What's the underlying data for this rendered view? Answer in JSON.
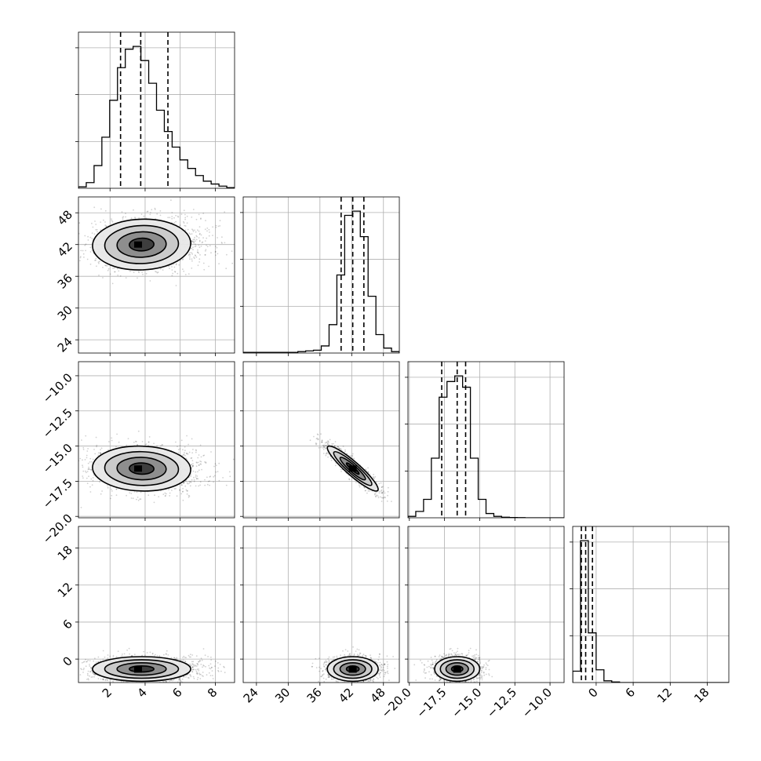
{
  "chart_data": {
    "type": "corner",
    "grid": true,
    "parameters": [
      {
        "range": [
          0.2,
          9.1
        ],
        "ticks": [
          2,
          4,
          6,
          8
        ],
        "tick_labels": [
          "2",
          "4",
          "6",
          "8"
        ]
      },
      {
        "range": [
          21.5,
          51.0
        ],
        "ticks": [
          24,
          30,
          36,
          42,
          48
        ],
        "tick_labels": [
          "24",
          "30",
          "36",
          "42",
          "48"
        ]
      },
      {
        "range": [
          -20.1,
          -9.0
        ],
        "ticks": [
          -20.0,
          -17.5,
          -15.0,
          -12.5,
          -10.0
        ],
        "tick_labels": [
          "−20.0",
          "−17.5",
          "−15.0",
          "−12.5",
          "−10.0"
        ]
      },
      {
        "range": [
          -3.8,
          21.5
        ],
        "ticks": [
          0,
          6,
          12,
          18
        ],
        "tick_labels": [
          "0",
          "6",
          "12",
          "18"
        ]
      }
    ],
    "histograms": [
      {
        "param": 0,
        "bin_edges": [
          0.2,
          0.645,
          1.09,
          1.535,
          1.98,
          2.425,
          2.87,
          3.315,
          3.76,
          4.205,
          4.65,
          5.095,
          5.54,
          5.985,
          6.43,
          6.875,
          7.32,
          7.765,
          8.21,
          8.655,
          9.1
        ],
        "counts": [
          0.01,
          0.04,
          0.16,
          0.36,
          0.62,
          0.85,
          0.98,
          1.0,
          0.9,
          0.74,
          0.55,
          0.4,
          0.29,
          0.2,
          0.14,
          0.09,
          0.05,
          0.03,
          0.015,
          0.005
        ],
        "quantiles": [
          2.6,
          3.75,
          5.3
        ]
      },
      {
        "param": 1,
        "bin_edges": [
          21.5,
          22.975,
          24.45,
          25.925,
          27.4,
          28.875,
          30.35,
          31.825,
          33.3,
          34.775,
          36.25,
          37.725,
          39.2,
          40.675,
          42.15,
          43.625,
          45.1,
          46.575,
          48.05,
          49.525,
          51.0
        ],
        "counts": [
          0.005,
          0.005,
          0.005,
          0.005,
          0.005,
          0.005,
          0.005,
          0.01,
          0.015,
          0.02,
          0.05,
          0.2,
          0.55,
          0.97,
          1.0,
          0.82,
          0.4,
          0.13,
          0.035,
          0.01
        ],
        "quantiles": [
          40.0,
          42.2,
          44.3
        ]
      },
      {
        "param": 2,
        "bin_edges": [
          -20.1,
          -19.545,
          -18.99,
          -18.435,
          -17.88,
          -17.325,
          -16.77,
          -16.215,
          -15.66,
          -15.105,
          -14.55,
          -13.995,
          -13.44,
          -12.885,
          -12.33,
          -11.775,
          -11.22,
          -10.665,
          -10.11,
          -9.555,
          -9.0
        ],
        "counts": [
          0.01,
          0.045,
          0.13,
          0.42,
          0.85,
          0.96,
          1.0,
          0.92,
          0.42,
          0.13,
          0.03,
          0.01,
          0.004,
          0.002,
          0.001,
          0.0,
          0.0,
          0.0,
          0.0,
          0.0
        ],
        "quantiles": [
          -17.7,
          -16.6,
          -16.0
        ]
      },
      {
        "param": 3,
        "bin_edges": [
          -3.8,
          -2.535,
          -1.27,
          -0.005,
          1.26,
          2.525,
          3.79,
          5.055,
          6.32,
          7.585,
          8.85,
          10.115,
          11.38,
          12.645,
          13.91,
          15.175,
          16.44,
          17.705,
          18.97,
          20.235,
          21.5
        ],
        "counts": [
          0.08,
          1.0,
          0.35,
          0.09,
          0.012,
          0.004,
          0.0,
          0.0,
          0.0,
          0.0,
          0.0,
          0.0,
          0.0,
          0.0,
          0.0,
          0.0,
          0.0,
          0.0,
          0.0,
          0.0
        ],
        "quantiles": [
          -2.4,
          -1.7,
          -0.6
        ]
      }
    ],
    "pairs": [
      {
        "x_param": 0,
        "y_param": 1,
        "mean": [
          3.8,
          42.0
        ],
        "sd": [
          1.4,
          2.4
        ],
        "corr": 0.05,
        "peak": [
          3.6,
          42.0
        ]
      },
      {
        "x_param": 0,
        "y_param": 2,
        "mean": [
          3.8,
          -16.6
        ],
        "sd": [
          1.4,
          0.8
        ],
        "corr": -0.05,
        "peak": [
          3.6,
          -16.6
        ]
      },
      {
        "x_param": 1,
        "y_param": 2,
        "mean": [
          42.2,
          -16.6
        ],
        "sd": [
          2.4,
          0.8
        ],
        "corr": -0.92,
        "peak": [
          42.2,
          -16.6
        ]
      },
      {
        "x_param": 0,
        "y_param": 3,
        "mean": [
          3.8,
          -1.6
        ],
        "sd": [
          1.4,
          1.0
        ],
        "corr": 0.0,
        "peak": [
          3.6,
          -1.7
        ]
      },
      {
        "x_param": 1,
        "y_param": 3,
        "mean": [
          42.2,
          -1.6
        ],
        "sd": [
          2.4,
          1.0
        ],
        "corr": 0.0,
        "peak": [
          42.2,
          -1.7
        ]
      },
      {
        "x_param": 2,
        "y_param": 3,
        "mean": [
          -16.6,
          -1.6
        ],
        "sd": [
          0.8,
          1.0
        ],
        "corr": 0.0,
        "peak": [
          -16.6,
          -1.7
        ]
      }
    ],
    "contour_levels_sigma": [
      0.5,
      1.0,
      1.5,
      2.0
    ]
  }
}
